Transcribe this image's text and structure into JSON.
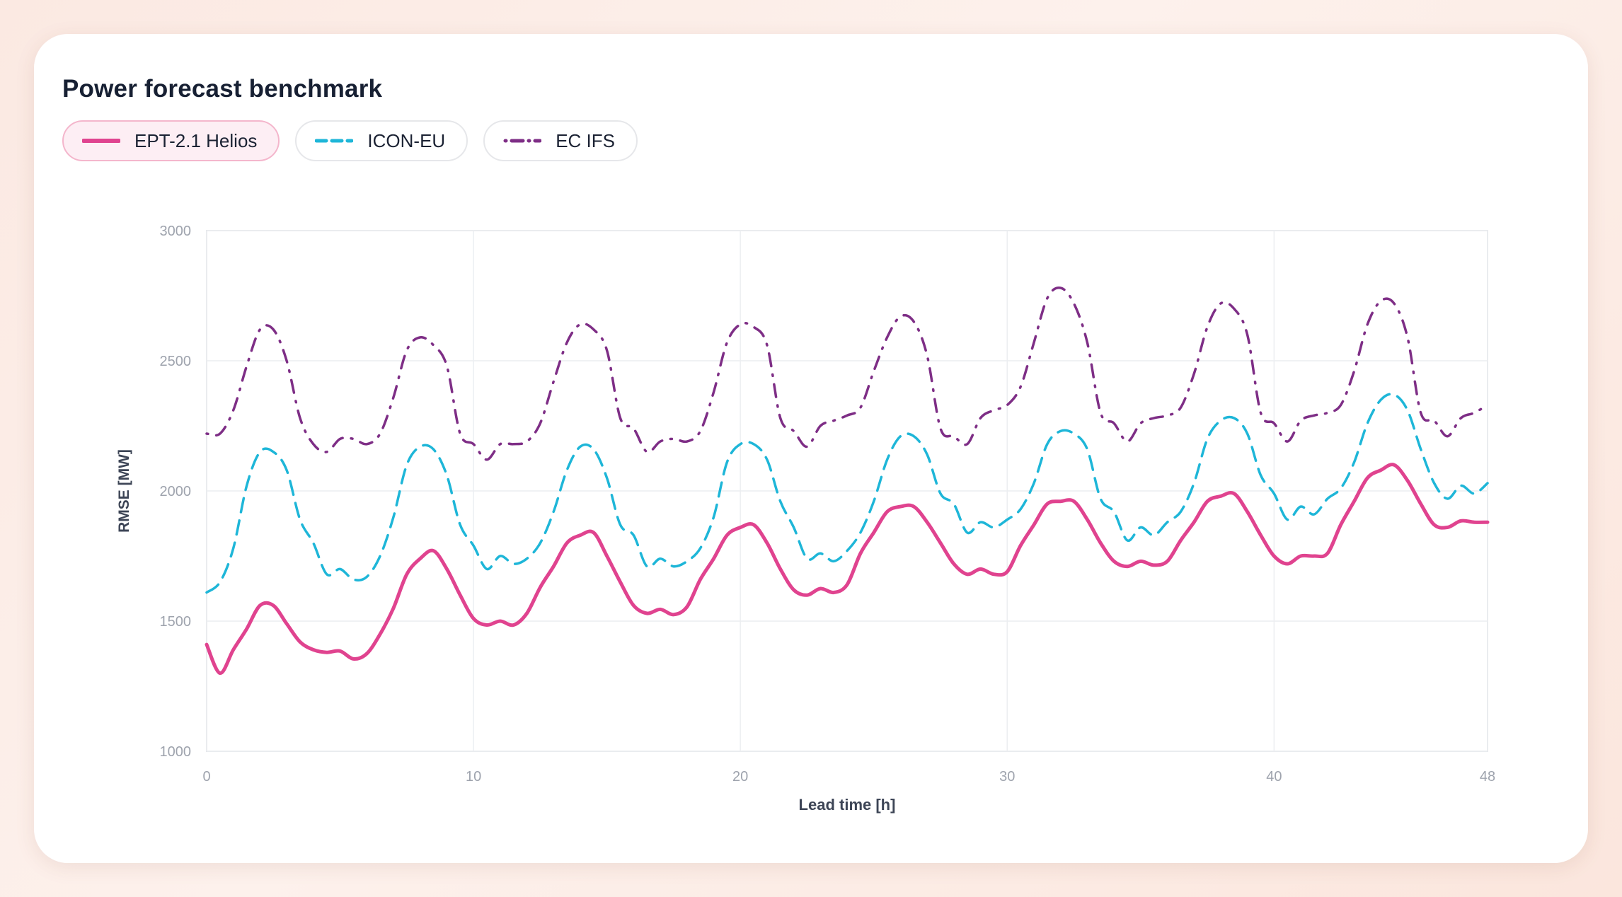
{
  "title": "Power forecast benchmark",
  "legend": [
    {
      "label": "EPT-2.1 Helios",
      "active": true
    },
    {
      "label": "ICON-EU",
      "active": false
    },
    {
      "label": "EC IFS",
      "active": false
    }
  ],
  "chart_data": {
    "type": "line",
    "title": "Power forecast benchmark",
    "xlabel": "Lead time [h]",
    "ylabel": "RMSE [MW]",
    "xlim": [
      0,
      48
    ],
    "ylim": [
      1000,
      3000
    ],
    "xticks": [
      0,
      10,
      20,
      30,
      40,
      48
    ],
    "yticks": [
      1000,
      1500,
      2000,
      2500,
      3000
    ],
    "grid": true,
    "legend_position": "top-left",
    "x": [
      0,
      0.5,
      1,
      1.5,
      2,
      2.5,
      3,
      3.5,
      4,
      4.5,
      5,
      5.5,
      6,
      6.5,
      7,
      7.5,
      8,
      8.5,
      9,
      9.5,
      10,
      10.5,
      11,
      11.5,
      12,
      12.5,
      13,
      13.5,
      14,
      14.5,
      15,
      15.5,
      16,
      16.5,
      17,
      17.5,
      18,
      18.5,
      19,
      19.5,
      20,
      20.5,
      21,
      21.5,
      22,
      22.5,
      23,
      23.5,
      24,
      24.5,
      25,
      25.5,
      26,
      26.5,
      27,
      27.5,
      28,
      28.5,
      29,
      29.5,
      30,
      30.5,
      31,
      31.5,
      32,
      32.5,
      33,
      33.5,
      34,
      34.5,
      35,
      35.5,
      36,
      36.5,
      37,
      37.5,
      38,
      38.5,
      39,
      39.5,
      40,
      40.5,
      41,
      41.5,
      42,
      42.5,
      43,
      43.5,
      44,
      44.5,
      45,
      45.5,
      46,
      46.5,
      47,
      47.5,
      48
    ],
    "series": [
      {
        "name": "EPT-2.1 Helios",
        "color": "#e0438f",
        "dash": "solid",
        "values": [
          1410,
          1300,
          1390,
          1470,
          1560,
          1560,
          1490,
          1420,
          1390,
          1380,
          1385,
          1355,
          1375,
          1450,
          1550,
          1680,
          1740,
          1770,
          1700,
          1600,
          1510,
          1485,
          1500,
          1485,
          1530,
          1630,
          1710,
          1800,
          1830,
          1840,
          1750,
          1650,
          1560,
          1530,
          1545,
          1525,
          1555,
          1660,
          1740,
          1830,
          1860,
          1870,
          1800,
          1700,
          1620,
          1600,
          1625,
          1610,
          1640,
          1760,
          1840,
          1920,
          1940,
          1940,
          1880,
          1800,
          1720,
          1680,
          1700,
          1680,
          1690,
          1790,
          1870,
          1950,
          1960,
          1960,
          1890,
          1800,
          1730,
          1710,
          1730,
          1715,
          1730,
          1810,
          1880,
          1960,
          1980,
          1990,
          1920,
          1830,
          1750,
          1720,
          1750,
          1750,
          1760,
          1870,
          1960,
          2050,
          2080,
          2100,
          2040,
          1950,
          1870,
          1860,
          1885,
          1880,
          1880
        ]
      },
      {
        "name": "ICON-EU",
        "color": "#1eb6d8",
        "dash": "dashed",
        "values": [
          1610,
          1650,
          1780,
          2020,
          2150,
          2150,
          2080,
          1890,
          1800,
          1680,
          1700,
          1660,
          1670,
          1750,
          1900,
          2100,
          2170,
          2160,
          2060,
          1870,
          1790,
          1700,
          1750,
          1720,
          1740,
          1800,
          1920,
          2080,
          2170,
          2160,
          2050,
          1870,
          1830,
          1710,
          1740,
          1710,
          1730,
          1780,
          1900,
          2110,
          2180,
          2180,
          2120,
          1960,
          1860,
          1740,
          1760,
          1730,
          1770,
          1840,
          1960,
          2120,
          2210,
          2210,
          2140,
          1990,
          1950,
          1840,
          1880,
          1860,
          1890,
          1930,
          2030,
          2180,
          2230,
          2220,
          2160,
          1970,
          1920,
          1810,
          1860,
          1830,
          1880,
          1920,
          2030,
          2200,
          2270,
          2280,
          2220,
          2060,
          1990,
          1890,
          1940,
          1910,
          1970,
          2010,
          2110,
          2260,
          2350,
          2370,
          2310,
          2160,
          2030,
          1970,
          2020,
          1990,
          2030
        ]
      },
      {
        "name": "EC IFS",
        "color": "#7e2e86",
        "dash": "dashdot",
        "values": [
          2220,
          2220,
          2310,
          2480,
          2620,
          2620,
          2500,
          2280,
          2180,
          2150,
          2200,
          2200,
          2180,
          2220,
          2360,
          2540,
          2590,
          2560,
          2480,
          2220,
          2180,
          2120,
          2180,
          2180,
          2190,
          2260,
          2420,
          2570,
          2640,
          2620,
          2540,
          2280,
          2240,
          2150,
          2190,
          2200,
          2190,
          2230,
          2380,
          2570,
          2640,
          2630,
          2560,
          2280,
          2230,
          2170,
          2250,
          2270,
          2290,
          2320,
          2460,
          2590,
          2670,
          2650,
          2520,
          2240,
          2210,
          2180,
          2280,
          2310,
          2330,
          2400,
          2570,
          2740,
          2780,
          2720,
          2570,
          2300,
          2260,
          2190,
          2260,
          2280,
          2290,
          2320,
          2450,
          2630,
          2720,
          2700,
          2600,
          2300,
          2260,
          2190,
          2270,
          2290,
          2300,
          2330,
          2460,
          2640,
          2730,
          2720,
          2590,
          2300,
          2270,
          2210,
          2280,
          2300,
          2330
        ]
      }
    ]
  }
}
